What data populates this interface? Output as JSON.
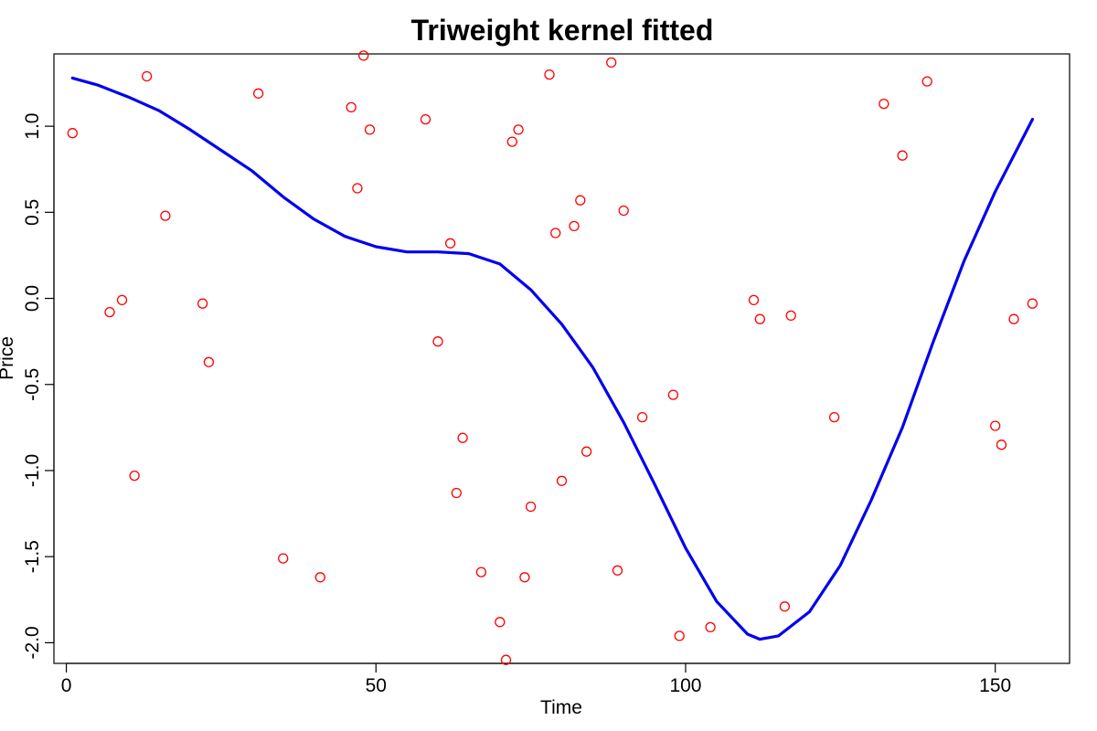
{
  "chart_data": {
    "type": "scatter",
    "title": "Triweight kernel fitted",
    "xlabel": "Time",
    "ylabel": "Price",
    "xlim": [
      -2,
      162
    ],
    "ylim": [
      -2.12,
      1.42
    ],
    "x_ticks": [
      0,
      50,
      100,
      150
    ],
    "y_ticks": [
      -2.0,
      -1.5,
      -1.0,
      -0.5,
      0.0,
      0.5,
      1.0
    ],
    "x_tick_labels": [
      "0",
      "50",
      "100",
      "150"
    ],
    "y_tick_labels": [
      "-2.0",
      "-1.5",
      "-1.0",
      "-0.5",
      "0.0",
      "0.5",
      "1.0"
    ],
    "grid": false,
    "colors": {
      "points": "#ff0000",
      "line": "#0000ee",
      "axes": "#000000"
    },
    "series": [
      {
        "kind": "points",
        "x": [
          1,
          7,
          9,
          11,
          13,
          16,
          22,
          23,
          31,
          35,
          41,
          46,
          47,
          48,
          49,
          58,
          60,
          62,
          63,
          64,
          67,
          70,
          71,
          72,
          73,
          74,
          75,
          78,
          79,
          80,
          82,
          83,
          84,
          88,
          89,
          90,
          93,
          98,
          99,
          104,
          111,
          112,
          116,
          117,
          124,
          132,
          135,
          139,
          150,
          151,
          153,
          156
        ],
        "y": [
          0.96,
          -0.08,
          -0.01,
          -1.03,
          1.29,
          0.48,
          -0.03,
          -0.37,
          1.19,
          -1.51,
          -1.62,
          1.11,
          0.64,
          1.41,
          0.98,
          1.04,
          -0.25,
          0.32,
          -1.13,
          -0.81,
          -1.59,
          -1.88,
          -2.1,
          0.91,
          0.98,
          -1.62,
          -1.21,
          1.3,
          0.38,
          -1.06,
          0.42,
          0.57,
          -0.89,
          1.37,
          -1.58,
          0.51,
          -0.69,
          -0.56,
          -1.96,
          -1.91,
          -0.01,
          -0.12,
          -1.79,
          -0.1,
          -0.69,
          1.13,
          0.83,
          1.26,
          -0.74,
          -0.85,
          -0.12,
          -0.03
        ]
      },
      {
        "kind": "line",
        "x": [
          1,
          5,
          10,
          15,
          20,
          25,
          30,
          35,
          40,
          45,
          50,
          55,
          60,
          65,
          70,
          75,
          80,
          85,
          90,
          95,
          100,
          105,
          110,
          112,
          115,
          120,
          125,
          130,
          135,
          140,
          145,
          150,
          156
        ],
        "y": [
          1.28,
          1.24,
          1.17,
          1.09,
          0.98,
          0.86,
          0.74,
          0.59,
          0.46,
          0.36,
          0.3,
          0.27,
          0.27,
          0.26,
          0.2,
          0.05,
          -0.15,
          -0.4,
          -0.72,
          -1.08,
          -1.45,
          -1.76,
          -1.95,
          -1.98,
          -1.96,
          -1.82,
          -1.55,
          -1.17,
          -0.75,
          -0.25,
          0.22,
          0.62,
          1.04
        ]
      }
    ]
  }
}
